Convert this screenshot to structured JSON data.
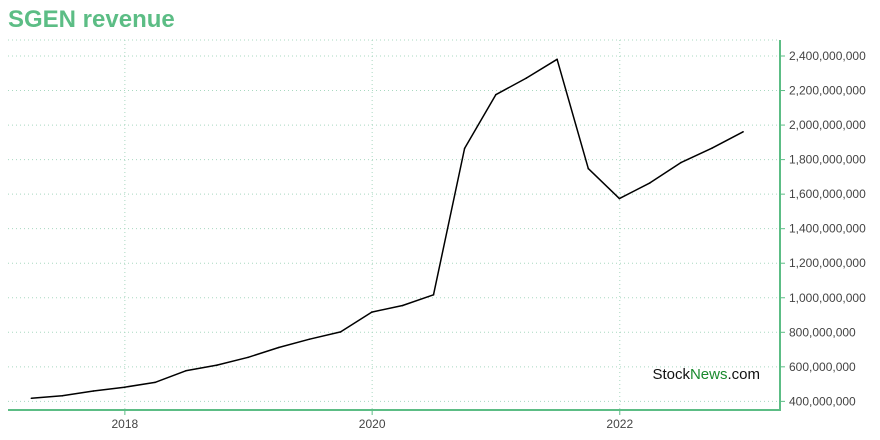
{
  "colors": {
    "title": "#5cbd85",
    "axis": "#5cbd85",
    "grid": "#a8d8c0",
    "line": "#000000",
    "watermark_dark": "#111111",
    "watermark_accent": "#1a8a2e"
  },
  "watermark": {
    "part1": "Stock",
    "part2": "News",
    "part3": ".com"
  },
  "chart_data": {
    "type": "line",
    "title": "SGEN revenue",
    "xlabel": "",
    "ylabel": "",
    "x_axis": "date",
    "y_axis_position": "right",
    "grid": true,
    "xlim": [
      "2017-01-21",
      "2023-04-19"
    ],
    "ylim": [
      350000000,
      2400000000
    ],
    "x_ticks": [
      "2018-01-01",
      "2020-01-01",
      "2022-01-01"
    ],
    "x_tick_labels": [
      "2018",
      "2020",
      "2022"
    ],
    "y_ticks": [
      400000000,
      600000000,
      800000000,
      1000000000,
      1200000000,
      1400000000,
      1600000000,
      1800000000,
      2000000000,
      2200000000,
      2400000000
    ],
    "y_tick_labels": [
      "400,000,000",
      "600,000,000",
      "800,000,000",
      "1,000,000,000",
      "1,200,000,000",
      "1,400,000,000",
      "1,600,000,000",
      "1,800,000,000",
      "2,000,000,000",
      "2,200,000,000",
      "2,400,000,000"
    ],
    "series": [
      {
        "x": [
          "2017-03-31",
          "2017-06-30",
          "2017-09-30",
          "2017-12-31",
          "2018-03-31",
          "2018-06-30",
          "2018-09-30",
          "2018-12-31",
          "2019-03-31",
          "2019-06-30",
          "2019-09-30",
          "2019-12-31",
          "2020-03-31",
          "2020-06-30",
          "2020-09-30",
          "2020-12-31",
          "2021-03-31",
          "2021-06-30",
          "2021-09-30",
          "2021-12-31",
          "2022-03-31",
          "2022-06-30",
          "2022-09-30",
          "2022-12-31"
        ],
        "values": [
          418000000,
          432000000,
          460000000,
          482000000,
          510000000,
          577000000,
          610000000,
          655000000,
          712000000,
          760000000,
          802000000,
          917000000,
          955000000,
          1017000000,
          1865000000,
          2176000000,
          2272000000,
          2381000000,
          1748000000,
          1574000000,
          1665000000,
          1782000000,
          1866000000,
          1961000000
        ]
      }
    ]
  }
}
